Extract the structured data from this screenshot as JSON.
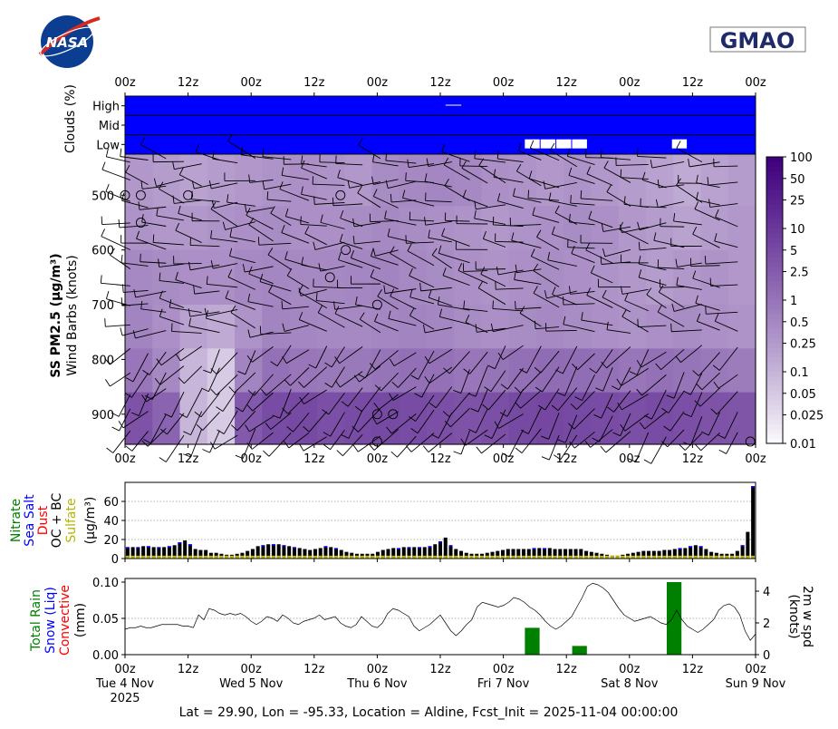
{
  "logos": {
    "left": "NASA",
    "right": "GMAO"
  },
  "footer": "Lat = 29.90, Lon = -95.33, Location = Aldine, Fcst_Init = 2025-11-04 00:00:00",
  "time_ticks": [
    "00z",
    "12z",
    "00z",
    "12z",
    "00z",
    "12z",
    "00z",
    "12z",
    "00z",
    "12z",
    "00z"
  ],
  "date_labels": [
    "Tue 4 Nov",
    "Wed 5 Nov",
    "Thu 6 Nov",
    "Fri 7 Nov",
    "Sat 8 Nov",
    "Sun 9 Nov"
  ],
  "year_label": "2025",
  "colors": {
    "cloud_blue": "#0000ff",
    "nitrate": "#008000",
    "seasalt": "#0000ff",
    "dust": "#ff0000",
    "ocbc": "#000000",
    "sulfate": "#b5b500",
    "rain": "#008000",
    "snow": "#0000ff",
    "convective": "#ff0000",
    "pm_low": "#ffffff",
    "pm_high": "#3f007d"
  },
  "chart_data": [
    {
      "type": "heatmap",
      "name": "clouds",
      "ylabel": "Clouds (%)",
      "rows": [
        "High",
        "Mid",
        "Low"
      ],
      "background_value": 100,
      "gaps": [
        {
          "row": "High",
          "x_hours": [
            61,
            64
          ]
        },
        {
          "row": "Low",
          "x_hours": [
            76,
            79
          ]
        },
        {
          "row": "Low",
          "x_hours": [
            79,
            82
          ]
        },
        {
          "row": "Low",
          "x_hours": [
            82,
            85
          ]
        },
        {
          "row": "Low",
          "x_hours": [
            85,
            88
          ]
        },
        {
          "row": "Low",
          "x_hours": [
            104,
            107
          ]
        }
      ],
      "xlim_hours": [
        0,
        120
      ]
    },
    {
      "type": "heatmap",
      "name": "ss_pm25",
      "ylabel_bold": "SS PM2.5 (μg/m³)",
      "ylabel": "Wind Barbs (knots)",
      "yticks": [
        500,
        600,
        700,
        800,
        900
      ],
      "ylim": [
        955,
        425
      ],
      "xlim_hours": [
        0,
        120
      ],
      "colorbar": {
        "scale": "log",
        "ticks": [
          "100",
          "50",
          "25",
          "10",
          "5",
          "2.5",
          "1",
          "0.5",
          "0.25",
          "0.1",
          "0.05",
          "0.025",
          "0.01"
        ],
        "range": [
          0.01,
          100
        ]
      },
      "layers": [
        {
          "p_top": 425,
          "p_bot": 520,
          "values": [
            0.3,
            0.25,
            0.2,
            0.25,
            0.3,
            0.35,
            0.4,
            0.35,
            0.3,
            0.45,
            0.5,
            0.55,
            0.5,
            0.4,
            0.35,
            0.3,
            0.35,
            0.3,
            0.25,
            0.2,
            0.15,
            0.2,
            0.25
          ]
        },
        {
          "p_top": 520,
          "p_bot": 600,
          "values": [
            0.35,
            0.3,
            0.3,
            0.35,
            0.4,
            0.45,
            0.4,
            0.4,
            0.45,
            0.5,
            0.45,
            0.4,
            0.35,
            0.3,
            0.35,
            0.4,
            0.45,
            0.4,
            0.3,
            0.25,
            0.2,
            0.25,
            0.3
          ]
        },
        {
          "p_top": 600,
          "p_bot": 700,
          "values": [
            0.5,
            0.45,
            0.4,
            0.4,
            0.5,
            0.55,
            0.5,
            0.5,
            0.55,
            0.6,
            0.5,
            0.45,
            0.4,
            0.35,
            0.4,
            0.45,
            0.4,
            0.35,
            0.3,
            0.25,
            0.3,
            0.35,
            0.3
          ]
        },
        {
          "p_top": 700,
          "p_bot": 780,
          "values": [
            0.6,
            0.4,
            0.2,
            0.15,
            0.35,
            0.6,
            0.55,
            0.5,
            0.5,
            0.55,
            0.6,
            0.55,
            0.45,
            0.4,
            0.45,
            0.5,
            0.45,
            0.4,
            0.35,
            0.4,
            0.45,
            0.4,
            0.35
          ]
        },
        {
          "p_top": 780,
          "p_bot": 860,
          "values": [
            1.0,
            0.5,
            0.1,
            0.05,
            0.6,
            1.2,
            1.0,
            0.9,
            0.9,
            1.1,
            1.3,
            1.2,
            1.0,
            1.1,
            1.3,
            1.5,
            1.4,
            1.2,
            1.0,
            1.2,
            1.1,
            0.9,
            0.8
          ]
        },
        {
          "p_top": 860,
          "p_bot": 955,
          "values": [
            4.0,
            2.0,
            0.1,
            0.05,
            3.0,
            5.0,
            5.5,
            4.5,
            5.0,
            5.5,
            5.0,
            4.5,
            4.0,
            4.5,
            5.5,
            6.0,
            5.5,
            5.0,
            4.5,
            5.0,
            4.5,
            4.0,
            3.5
          ]
        }
      ],
      "wind_barbs": "present at each grid cell, predominantly from the south to southwest"
    },
    {
      "type": "bar",
      "name": "aerosol_components",
      "ylabel_stack": [
        "Nitrate",
        "Sea Salt",
        "Dust",
        "OC + BC",
        "Sulfate"
      ],
      "ylabel_units": "(μg/m³)",
      "yticks": [
        0,
        20,
        40,
        60
      ],
      "ylim": [
        0,
        80
      ],
      "xlim_hours": [
        0,
        120
      ],
      "bar_interval_hours": 1,
      "series_total": [
        12,
        12,
        12,
        13,
        13,
        12,
        12,
        12,
        13,
        14,
        17,
        19,
        15,
        10,
        9,
        9,
        6,
        6,
        5,
        4,
        4,
        5,
        6,
        8,
        10,
        13,
        14,
        15,
        15,
        15,
        14,
        13,
        12,
        11,
        10,
        9,
        10,
        11,
        13,
        12,
        11,
        9,
        7,
        6,
        5,
        5,
        5,
        5,
        7,
        9,
        10,
        11,
        11,
        12,
        12,
        12,
        12,
        12,
        13,
        15,
        18,
        22,
        14,
        10,
        8,
        6,
        5,
        5,
        5,
        6,
        7,
        8,
        9,
        10,
        10,
        10,
        10,
        10,
        11,
        11,
        11,
        11,
        10,
        10,
        10,
        10,
        10,
        10,
        8,
        7,
        6,
        5,
        4,
        3,
        3,
        4,
        5,
        6,
        7,
        8,
        8,
        8,
        8,
        9,
        9,
        10,
        11,
        11,
        13,
        14,
        13,
        10,
        7,
        6,
        5,
        5,
        5,
        8,
        14,
        28,
        76
      ]
    },
    {
      "type": "line",
      "name": "precip_wind",
      "ylabel_stack": [
        "Total Rain",
        "Snow (Liq)",
        "Convective"
      ],
      "ylabel_units": "(mm)",
      "yticks_left": [
        "0.00",
        "0.05",
        "0.10"
      ],
      "ylim_left": [
        0,
        0.105
      ],
      "y2label": [
        "2m w spd",
        "(knots)"
      ],
      "yticks_right": [
        0,
        2,
        4
      ],
      "ylim_right": [
        0,
        4.8
      ],
      "xlim_hours": [
        0,
        120
      ],
      "rain_bars": [
        {
          "x_hours": 77.5,
          "value": 0.037
        },
        {
          "x_hours": 86.5,
          "value": 0.012
        },
        {
          "x_hours": 104.5,
          "value": 0.1
        }
      ],
      "wind_speed": [
        1.6,
        1.7,
        1.7,
        1.8,
        1.7,
        1.7,
        1.8,
        1.9,
        1.9,
        1.9,
        1.9,
        1.8,
        1.8,
        1.7,
        2.5,
        2.2,
        2.9,
        2.8,
        2.6,
        2.5,
        2.6,
        2.5,
        2.6,
        2.4,
        2.1,
        1.9,
        2.1,
        2.4,
        2.3,
        2.1,
        2.5,
        2.3,
        2.0,
        1.9,
        2.1,
        2.2,
        2.3,
        2.5,
        2.2,
        2.3,
        2.4,
        2.0,
        1.8,
        1.7,
        1.9,
        2.4,
        2.1,
        1.8,
        1.7,
        2.0,
        2.6,
        2.9,
        2.8,
        2.6,
        2.4,
        1.8,
        1.5,
        1.7,
        1.9,
        2.2,
        2.5,
        2.0,
        1.5,
        1.2,
        1.5,
        1.9,
        2.2,
        3.0,
        3.3,
        3.2,
        3.1,
        3.0,
        3.1,
        3.3,
        3.6,
        3.5,
        3.3,
        3.0,
        2.8,
        2.5,
        2.1,
        1.8,
        1.6,
        1.8,
        2.1,
        2.4,
        3.0,
        3.6,
        4.3,
        4.5,
        4.4,
        4.2,
        3.9,
        3.4,
        2.9,
        2.5,
        2.3,
        2.1,
        2.2,
        2.3,
        2.4,
        2.2,
        2.0,
        1.9,
        2.2,
        2.8,
        2.2,
        1.8,
        1.6,
        1.4,
        1.6,
        1.9,
        2.2,
        2.8,
        3.1,
        3.2,
        3.0,
        2.5,
        1.5,
        0.9,
        1.3
      ]
    }
  ]
}
